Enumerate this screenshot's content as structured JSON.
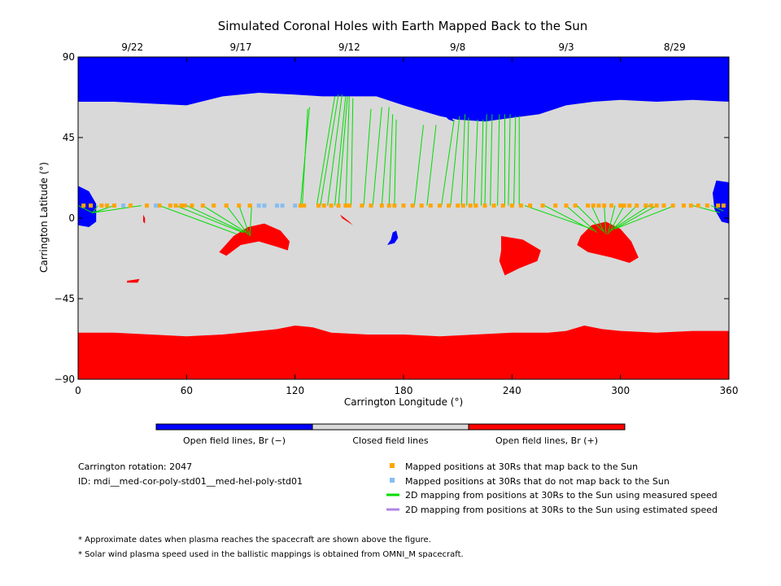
{
  "chart_data": {
    "type": "heatmap",
    "title": "Simulated Coronal Holes with Earth Mapped Back to the Sun",
    "xlabel": "Carrington Longitude (°)",
    "ylabel": "Carrington Latitude (°)",
    "xlim": [
      0,
      360
    ],
    "ylim": [
      -90,
      90
    ],
    "x_ticks": [
      "0",
      "60",
      "120",
      "180",
      "240",
      "300",
      "360"
    ],
    "y_ticks": [
      "90",
      "45",
      "0",
      "−45",
      "−90"
    ],
    "top_date_ticks": [
      {
        "label": "9/22",
        "lon": 30
      },
      {
        "label": "9/17",
        "lon": 90
      },
      {
        "label": "9/12",
        "lon": 150
      },
      {
        "label": "9/8",
        "lon": 210
      },
      {
        "label": "9/3",
        "lon": 270
      },
      {
        "label": "8/29",
        "lon": 330
      }
    ],
    "colors": {
      "open_negative": "#0000ff",
      "closed": "#d9d9d9",
      "open_positive": "#ff0000",
      "mapped": "#ffa500",
      "unmapped": "#87bef0",
      "measured_speed": "#00dd00",
      "estimated_speed": "#b084e6"
    },
    "color_bar": {
      "labels": [
        "Open field lines, Br (−)",
        "Closed field lines",
        "Open field lines, Br (+)"
      ]
    },
    "north_boundary": [
      [
        0,
        65
      ],
      [
        20,
        65
      ],
      [
        40,
        64
      ],
      [
        60,
        63
      ],
      [
        80,
        68
      ],
      [
        100,
        70
      ],
      [
        120,
        69
      ],
      [
        135,
        68
      ],
      [
        150,
        68
      ],
      [
        165,
        68
      ],
      [
        180,
        63
      ],
      [
        200,
        57
      ],
      [
        210,
        55
      ],
      [
        225,
        54
      ],
      [
        240,
        56
      ],
      [
        255,
        58
      ],
      [
        270,
        63
      ],
      [
        285,
        65
      ],
      [
        300,
        66
      ],
      [
        320,
        65
      ],
      [
        340,
        66
      ],
      [
        360,
        65
      ]
    ],
    "south_boundary": [
      [
        0,
        -64
      ],
      [
        20,
        -64
      ],
      [
        40,
        -65
      ],
      [
        60,
        -66
      ],
      [
        80,
        -65
      ],
      [
        100,
        -63
      ],
      [
        110,
        -62
      ],
      [
        120,
        -60
      ],
      [
        130,
        -61
      ],
      [
        140,
        -64
      ],
      [
        160,
        -65
      ],
      [
        180,
        -65
      ],
      [
        200,
        -66
      ],
      [
        220,
        -65
      ],
      [
        240,
        -64
      ],
      [
        260,
        -64
      ],
      [
        270,
        -63
      ],
      [
        280,
        -60
      ],
      [
        290,
        -62
      ],
      [
        300,
        -63
      ],
      [
        320,
        -64
      ],
      [
        340,
        -63
      ],
      [
        360,
        -63
      ]
    ],
    "coronal_holes": [
      {
        "polarity": "negative",
        "polygon": [
          [
            0,
            18
          ],
          [
            6,
            15
          ],
          [
            10,
            8
          ],
          [
            10,
            -2
          ],
          [
            6,
            -5
          ],
          [
            0,
            -4
          ]
        ]
      },
      {
        "polarity": "negative",
        "polygon": [
          [
            353,
            21
          ],
          [
            360,
            20
          ],
          [
            360,
            -3
          ],
          [
            356,
            -2
          ],
          [
            352,
            5
          ],
          [
            351,
            14
          ]
        ]
      },
      {
        "polarity": "negative",
        "polygon": [
          [
            174,
            -8
          ],
          [
            176,
            -7
          ],
          [
            177,
            -11
          ],
          [
            175,
            -14
          ],
          [
            171,
            -15
          ],
          [
            173,
            -12
          ]
        ]
      },
      {
        "polarity": "negative",
        "polygon": [
          [
            201,
            59
          ],
          [
            205,
            55
          ],
          [
            208,
            54
          ],
          [
            206,
            57
          ]
        ]
      },
      {
        "polarity": "positive",
        "polygon": [
          [
            78,
            -19
          ],
          [
            86,
            -10
          ],
          [
            94,
            -5
          ],
          [
            103,
            -3
          ],
          [
            112,
            -7
          ],
          [
            117,
            -13
          ],
          [
            116,
            -18
          ],
          [
            110,
            -16
          ],
          [
            100,
            -13
          ],
          [
            90,
            -15
          ],
          [
            82,
            -21
          ]
        ]
      },
      {
        "polarity": "positive",
        "polygon": [
          [
            234,
            -10
          ],
          [
            246,
            -12
          ],
          [
            256,
            -18
          ],
          [
            254,
            -24
          ],
          [
            244,
            -28
          ],
          [
            236,
            -32
          ],
          [
            233,
            -24
          ],
          [
            234,
            -18
          ]
        ]
      },
      {
        "polarity": "positive",
        "polygon": [
          [
            278,
            -10
          ],
          [
            284,
            -4
          ],
          [
            292,
            -2
          ],
          [
            300,
            -6
          ],
          [
            306,
            -13
          ],
          [
            310,
            -22
          ],
          [
            305,
            -25
          ],
          [
            295,
            -22
          ],
          [
            282,
            -19
          ],
          [
            276,
            -15
          ]
        ]
      },
      {
        "polarity": "positive",
        "polygon": [
          [
            145,
            2
          ],
          [
            150,
            -2
          ],
          [
            152,
            -4
          ],
          [
            149,
            -2
          ],
          [
            146,
            0
          ]
        ]
      },
      {
        "polarity": "positive",
        "polygon": [
          [
            36,
            2
          ],
          [
            37,
            0
          ],
          [
            37,
            -3
          ],
          [
            36,
            -2
          ]
        ]
      },
      {
        "polarity": "positive",
        "polygon": [
          [
            27,
            -35
          ],
          [
            34,
            -34
          ],
          [
            33,
            -36
          ],
          [
            27,
            -36
          ]
        ]
      }
    ],
    "mapped_positions_30Rs": {
      "latitude": 7,
      "mapped_lon": [
        3,
        7,
        13,
        16,
        20,
        29,
        38,
        45,
        51,
        54,
        57,
        59,
        63,
        69,
        75,
        82,
        89,
        95,
        123,
        125,
        133,
        136,
        140,
        144,
        148,
        150,
        157,
        162,
        168,
        172,
        175,
        180,
        185,
        190,
        195,
        200,
        205,
        210,
        213,
        217,
        220,
        225,
        230,
        235,
        240,
        245,
        250,
        257,
        264,
        270,
        275,
        282,
        285,
        288,
        291,
        295,
        300,
        302,
        305,
        309,
        314,
        317,
        320,
        324,
        329,
        335,
        339,
        343,
        348,
        354,
        357
      ],
      "unmapped_lon": [
        25,
        43,
        100,
        103,
        110,
        113,
        120
      ]
    },
    "mappings_measured_speed": [
      [
        0,
        7,
        8,
        3
      ],
      [
        11,
        7,
        8,
        3
      ],
      [
        20,
        7,
        8,
        3
      ],
      [
        35,
        7,
        8,
        3
      ],
      [
        45,
        7,
        88,
        -9
      ],
      [
        54,
        7,
        91,
        -8
      ],
      [
        60,
        7,
        92,
        -8
      ],
      [
        69,
        7,
        93,
        -8
      ],
      [
        82,
        7,
        94,
        -9
      ],
      [
        89,
        7,
        95,
        -10
      ],
      [
        96,
        7,
        95,
        -10
      ],
      [
        123,
        7,
        128,
        62
      ],
      [
        124,
        7,
        127,
        61
      ],
      [
        132,
        7,
        142,
        68
      ],
      [
        134,
        7,
        144,
        69
      ],
      [
        138,
        7,
        146,
        69
      ],
      [
        142,
        7,
        148,
        68
      ],
      [
        144,
        7,
        149,
        68
      ],
      [
        148,
        7,
        150,
        68
      ],
      [
        151,
        7,
        152,
        67
      ],
      [
        158,
        7,
        162,
        61
      ],
      [
        163,
        7,
        168,
        62
      ],
      [
        168,
        7,
        172,
        62
      ],
      [
        172,
        7,
        174,
        58
      ],
      [
        175,
        7,
        176,
        55
      ],
      [
        186,
        7,
        191,
        52
      ],
      [
        193,
        7,
        198,
        52
      ],
      [
        201,
        7,
        208,
        55
      ],
      [
        206,
        7,
        211,
        57
      ],
      [
        212,
        7,
        214,
        58
      ],
      [
        215,
        7,
        216,
        56
      ],
      [
        219,
        7,
        221,
        55
      ],
      [
        223,
        7,
        224,
        55
      ],
      [
        225,
        7,
        226,
        58
      ],
      [
        228,
        7,
        229,
        58
      ],
      [
        232,
        7,
        233,
        58
      ],
      [
        236,
        7,
        236,
        58
      ],
      [
        238,
        7,
        239,
        58
      ],
      [
        241,
        7,
        242,
        57
      ],
      [
        244,
        7,
        244,
        57
      ],
      [
        247,
        7,
        284,
        -6
      ],
      [
        258,
        7,
        285,
        -7
      ],
      [
        270,
        7,
        287,
        -8
      ],
      [
        276,
        7,
        290,
        -7
      ],
      [
        284,
        7,
        291,
        -8
      ],
      [
        291,
        7,
        292,
        -9
      ],
      [
        297,
        7,
        293,
        -9
      ],
      [
        302,
        7,
        294,
        -8
      ],
      [
        309,
        7,
        295,
        -7
      ],
      [
        316,
        7,
        296,
        -6
      ],
      [
        320,
        7,
        297,
        -6
      ],
      [
        330,
        7,
        297,
        -6
      ],
      [
        340,
        7,
        355,
        3
      ],
      [
        350,
        7,
        357,
        4
      ]
    ],
    "mappings_estimated_speed": []
  },
  "info": {
    "carrington_rotation": "Carrington rotation: 2047",
    "model_id": "ID: mdi__med-cor-poly-std01__med-hel-poly-std01"
  },
  "legend": {
    "mapped": "Mapped positions at 30Rs that map back to the Sun",
    "unmapped": "Mapped positions at 30Rs that do not map back to the Sun",
    "measured": "2D mapping from positions at 30Rs to the Sun using measured speed",
    "estimated": "2D mapping from positions at 30Rs to the Sun using estimated speed"
  },
  "footnotes": [
    "* Approximate dates when plasma reaches the spacecraft are shown above the figure.",
    "* Solar wind plasma speed used in the ballistic mappings is obtained from OMNI_M spacecraft."
  ]
}
